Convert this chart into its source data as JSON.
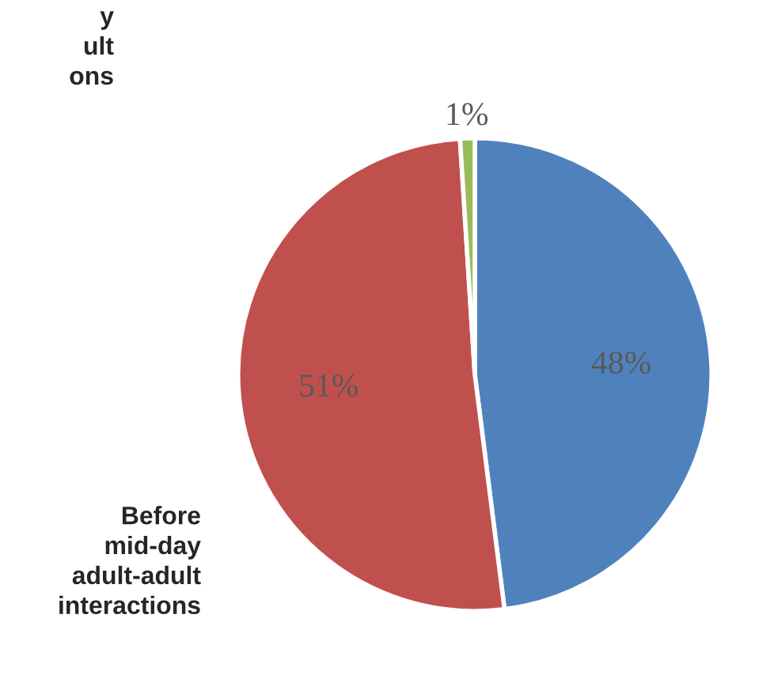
{
  "chart_data": {
    "type": "pie",
    "categories": [
      null,
      "Before mid-day adult-adult interactions",
      null
    ],
    "values": [
      48,
      51,
      1
    ],
    "colors": [
      "#4f81bd",
      "#c0504d",
      "#9bbb59"
    ],
    "value_labels": [
      "48%",
      "51%",
      "1%"
    ],
    "annotations": [
      "y ult ons"
    ]
  }
}
